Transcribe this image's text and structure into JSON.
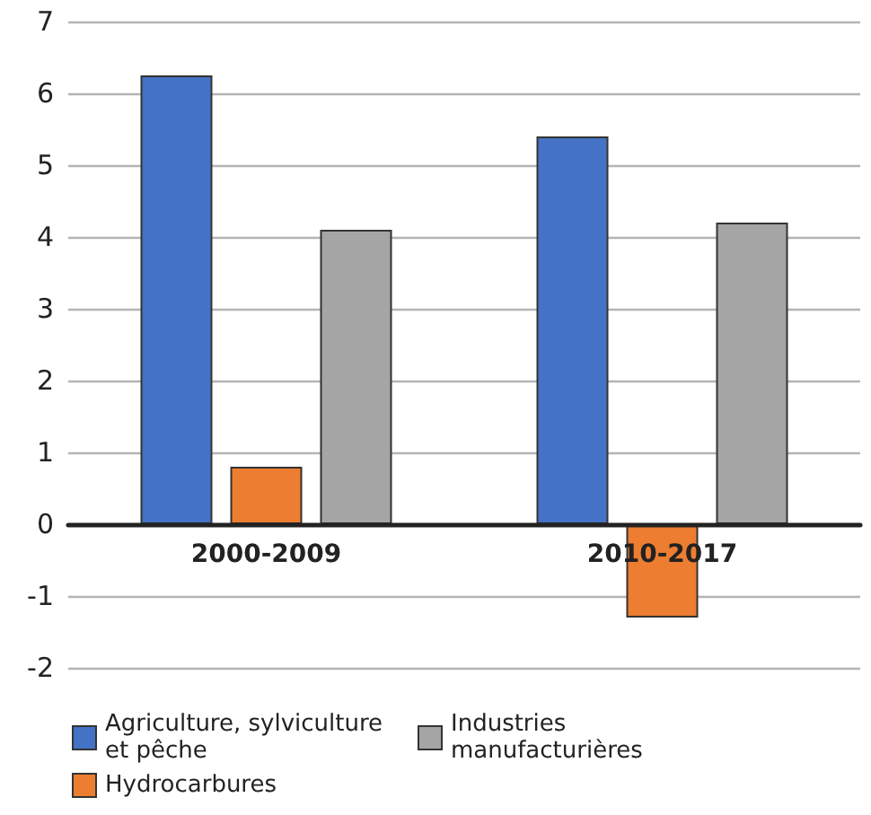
{
  "chart_data": {
    "type": "bar",
    "categories": [
      "2000-2009",
      "2010-2017"
    ],
    "series": [
      {
        "name": "Agriculture, sylviculture et pêche",
        "color": "#4472c4",
        "values": [
          6.25,
          5.4
        ]
      },
      {
        "name": "Hydrocarbures",
        "color": "#ed7d31",
        "values": [
          0.8,
          -1.3
        ]
      },
      {
        "name": "Industries manufacturières",
        "color": "#a5a5a5",
        "values": [
          4.1,
          4.2
        ]
      }
    ],
    "ylim": [
      -2,
      7
    ],
    "yticks": [
      -2,
      -1,
      0,
      1,
      2,
      3,
      4,
      5,
      6,
      7
    ],
    "grid": "y",
    "legend": "bottom"
  }
}
